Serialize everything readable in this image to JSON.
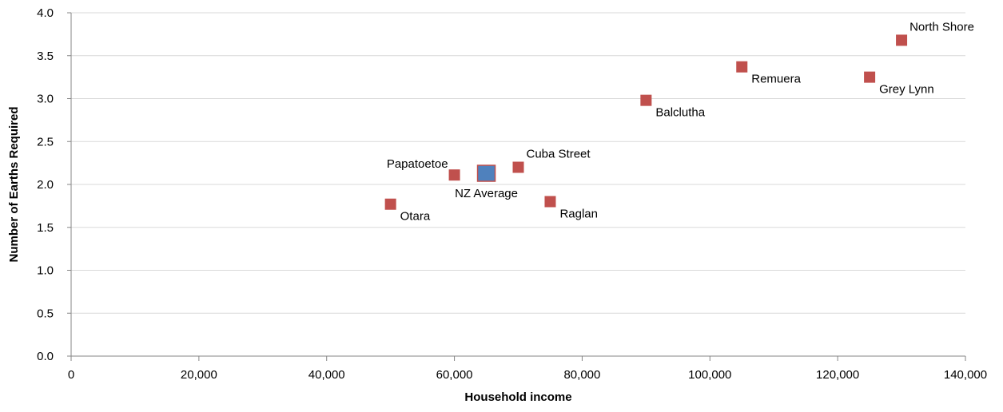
{
  "chart_data": {
    "type": "scatter",
    "title": "",
    "xlabel": "Household income",
    "ylabel": "Number of Earths Required",
    "xlim": [
      0,
      140000
    ],
    "ylim": [
      0,
      4
    ],
    "x_ticks": [
      0,
      20000,
      40000,
      60000,
      80000,
      100000,
      120000,
      140000
    ],
    "x_tick_labels": [
      "0",
      "20,000",
      "40,000",
      "60,000",
      "80,000",
      "100,000",
      "120,000",
      "140,000"
    ],
    "y_ticks": [
      0,
      0.5,
      1,
      1.5,
      2,
      2.5,
      3,
      3.5,
      4
    ],
    "y_tick_labels": [
      "0.0",
      "0.5",
      "1.0",
      "1.5",
      "2.0",
      "2.5",
      "3.0",
      "3.5",
      "4.0"
    ],
    "grid": "horizontal",
    "legend": "none",
    "colors": {
      "point": "#c0504d",
      "highlight": "#4f81bd",
      "grid": "#d9d9d9",
      "axis": "#868686"
    },
    "points": [
      {
        "label": "Otara",
        "x": 50000,
        "y": 1.77,
        "label_pos": "below-right"
      },
      {
        "label": "Papatoetoe",
        "x": 60000,
        "y": 2.11,
        "label_pos": "above-left"
      },
      {
        "label": "NZ Average",
        "x": 65000,
        "y": 2.13,
        "label_pos": "below",
        "highlight": true
      },
      {
        "label": "Cuba Street",
        "x": 70000,
        "y": 2.2,
        "label_pos": "above-right"
      },
      {
        "label": "Raglan",
        "x": 75000,
        "y": 1.8,
        "label_pos": "below-right"
      },
      {
        "label": "Balclutha",
        "x": 90000,
        "y": 2.98,
        "label_pos": "below-right"
      },
      {
        "label": "Remuera",
        "x": 105000,
        "y": 3.37,
        "label_pos": "below-right"
      },
      {
        "label": "Grey Lynn",
        "x": 125000,
        "y": 3.25,
        "label_pos": "below-right"
      },
      {
        "label": "North Shore",
        "x": 130000,
        "y": 3.68,
        "label_pos": "above-right"
      }
    ]
  }
}
